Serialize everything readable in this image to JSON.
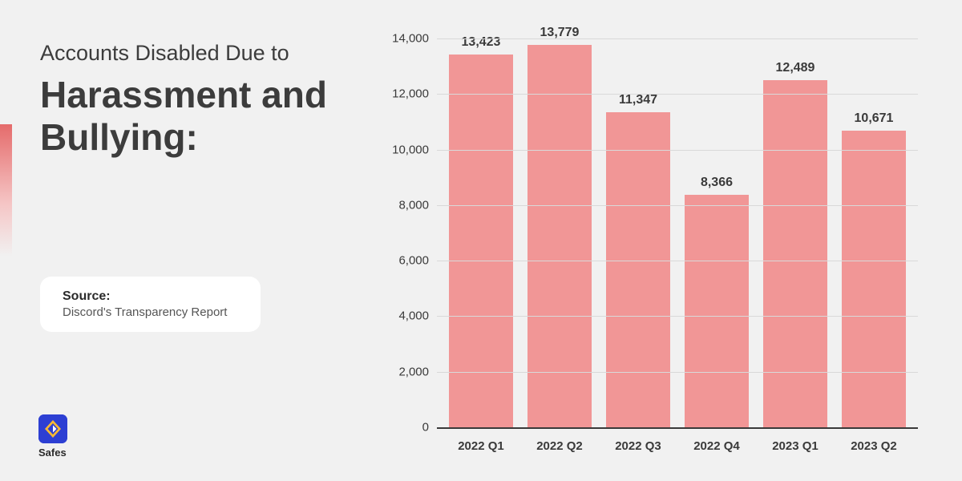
{
  "left": {
    "title_small": "Accounts Disabled Due to",
    "title_large": "Harassment and Bullying:",
    "accent_gradient_top": "#e56b6b"
  },
  "source": {
    "label": "Source:",
    "text": "Discord's Transparency Report"
  },
  "logo": {
    "name": "Safes",
    "bg_color": "#2d3fd3",
    "diamond_color": "#f9b933"
  },
  "chart": {
    "type": "bar",
    "background": "#f1f1f1",
    "bar_color": "#f19696",
    "grid_color": "#d9d9d9",
    "axis_color": "#3a3a3a",
    "y_min": 0,
    "y_max": 14000,
    "y_tick_step": 2000,
    "y_ticks": [
      "0",
      "2,000",
      "4,000",
      "6,000",
      "8,000",
      "10,000",
      "12,000",
      "14,000"
    ],
    "categories": [
      "2022 Q1",
      "2022 Q2",
      "2022 Q3",
      "2022 Q4",
      "2023 Q1",
      "2023 Q2"
    ],
    "values": [
      13423,
      13779,
      11347,
      8366,
      12489,
      10671
    ],
    "value_labels": [
      "13,423",
      "13,779",
      "11,347",
      "8,366",
      "12,489",
      "10,671"
    ],
    "bar_label_fontsize": 16,
    "tick_fontsize": 15,
    "bar_width_ratio": 0.82
  }
}
